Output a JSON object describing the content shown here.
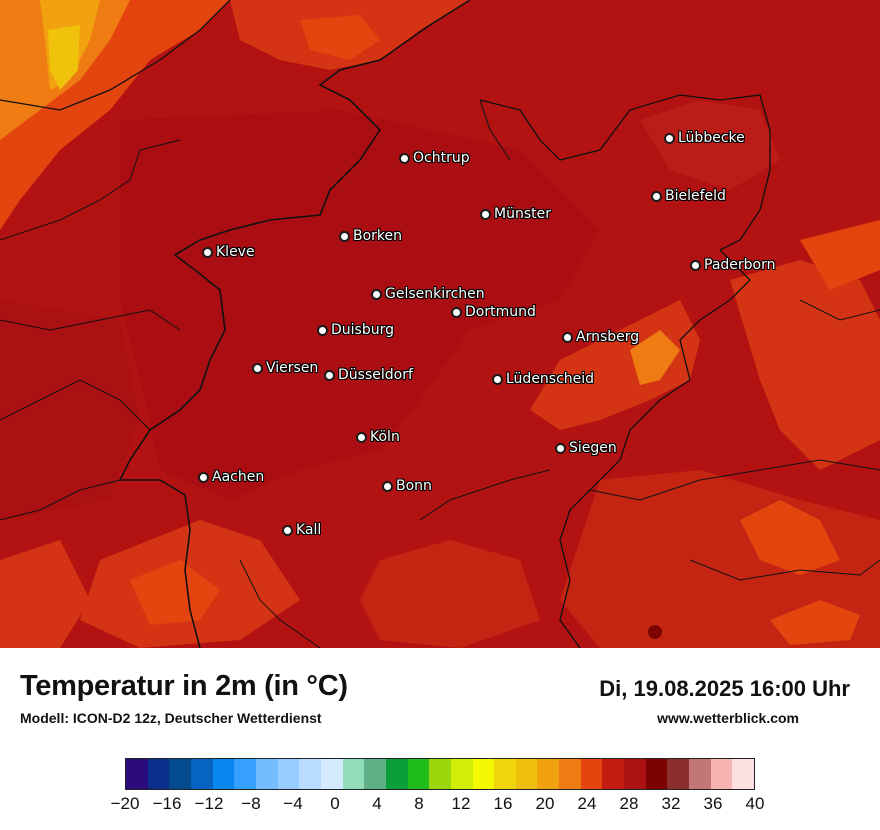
{
  "map": {
    "cities": [
      {
        "name": "Lübbecke"
      },
      {
        "name": "Ochtrup"
      },
      {
        "name": "Bielefeld"
      },
      {
        "name": "Münster"
      },
      {
        "name": "Borken"
      },
      {
        "name": "Kleve"
      },
      {
        "name": "Paderborn"
      },
      {
        "name": "Gelsenkirchen"
      },
      {
        "name": "Dortmund"
      },
      {
        "name": "Duisburg"
      },
      {
        "name": "Arnsberg"
      },
      {
        "name": "Viersen"
      },
      {
        "name": "Düsseldorf"
      },
      {
        "name": "Lüdenscheid"
      },
      {
        "name": "Köln"
      },
      {
        "name": "Siegen"
      },
      {
        "name": "Aachen"
      },
      {
        "name": "Bonn"
      },
      {
        "name": "Kall"
      }
    ]
  },
  "legend": {
    "title": "Temperatur in 2m (in °C)",
    "subtitle": "Modell: ICON-D2 12z, Deutscher Wetterdienst",
    "datetime": "Di, 19.08.2025 16:00 Uhr",
    "website": "www.wetterblick.com",
    "tick_labels": [
      "−20",
      "−16",
      "−12",
      "−8",
      "−4",
      "0",
      "4",
      "8",
      "12",
      "16",
      "20",
      "24",
      "28",
      "32",
      "36",
      "40"
    ],
    "colors": [
      "#2c0b7a",
      "#0a2f8c",
      "#044a8f",
      "#0563c2",
      "#0888ee",
      "#36a0ff",
      "#75bcff",
      "#96ccff",
      "#b8dcff",
      "#d5e9ff",
      "#93dcb8",
      "#5fb086",
      "#0a9f3a",
      "#21bd1a",
      "#9ad80d",
      "#d2ee06",
      "#f4f802",
      "#f0d50a",
      "#efbd0c",
      "#f2a20e",
      "#ee7c12",
      "#e4450e",
      "#c31c12",
      "#ab1212",
      "#7d0303",
      "#8c2e2e",
      "#c17777",
      "#f6b5b3",
      "#fde0e2"
    ]
  }
}
